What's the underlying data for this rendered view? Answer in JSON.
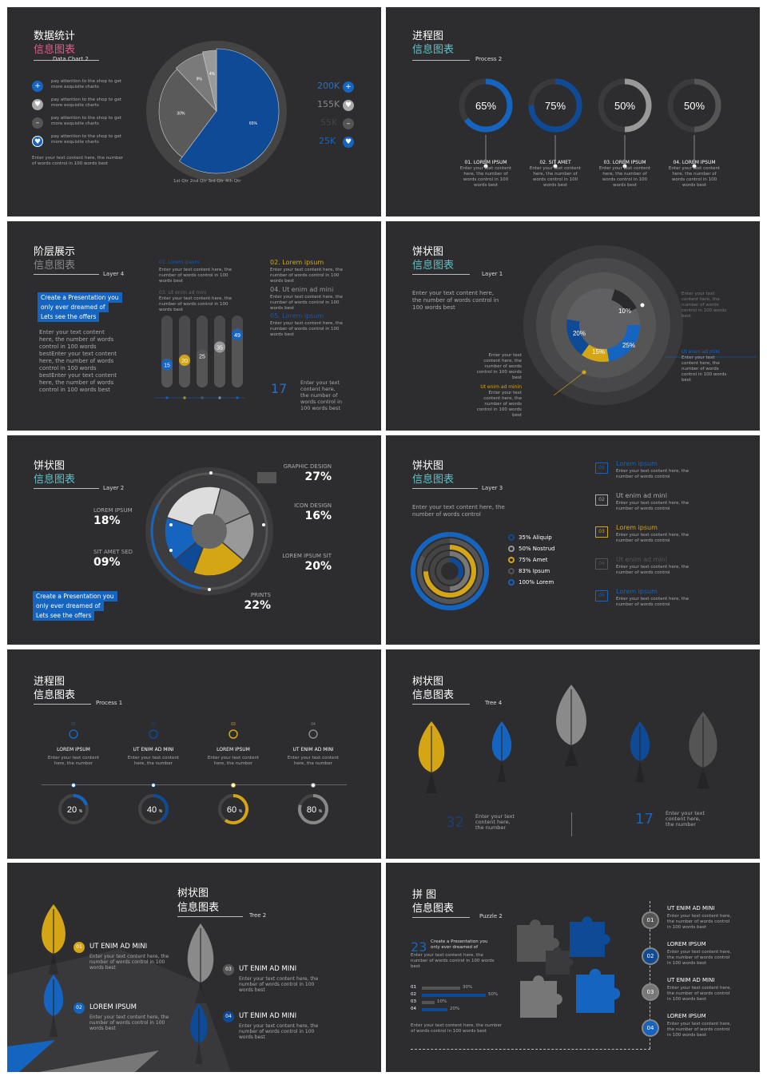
{
  "colors": {
    "bg": "#2d2d2f",
    "blue": "#1565c0",
    "yellow": "#d4a514",
    "grey": "#8a8a8a",
    "dark": "#555"
  },
  "s1": {
    "t1": "数据统计",
    "t2": "信息图表",
    "sub": "Data Chart 2",
    "items": [
      "pay attention to the shop to get more exquisite charts",
      "pay attention to the shop to get more exquisite charts",
      "pay attention to the shop to get more exquisite charts",
      "pay attention to the shop to get more exquisite charts"
    ],
    "foot": "Enter your text content here, the number of words control in 100 words best",
    "nums": [
      "200K",
      "155K",
      "55K",
      "25K"
    ],
    "legend": "1st Qtr  2nd Qtr  3rd Qtr  4th Qtr",
    "chart_data": {
      "type": "pie",
      "values": [
        65,
        30,
        9,
        4
      ],
      "labels": [
        "65%",
        "30%",
        "9%",
        "4%"
      ]
    }
  },
  "s2": {
    "t1": "进程图",
    "t2": "信息图表",
    "sub": "Process 2",
    "rings": [
      {
        "v": "65%",
        "h": "01. LOREM IPSUM"
      },
      {
        "v": "75%",
        "h": "02. SIT AMET"
      },
      {
        "v": "50%",
        "h": "03. LOREM IPSUM"
      },
      {
        "v": "50%",
        "h": "04. LOREM IPSUM"
      }
    ],
    "body": "Enter your text content here, the number of words control in 100 words best"
  },
  "s3": {
    "t1": "阶层展示",
    "t2": "信息图表",
    "sub": "Layer 4",
    "box": [
      "Create a Presentation you",
      "only ever dreamed of",
      "Lets see the offers"
    ],
    "left": "Enter your text content here, the number of words control in 100 words bestEnter your text content here, the number of words control in 100 words bestEnter your text content here, the number of words control in 100 words best",
    "c1h": [
      "01. Lorem ipsum",
      "03. Ut enim ad mini"
    ],
    "c2h": [
      "02. Lorem ipsum",
      "04. Ut enim ad mini",
      "05. Lorem ipsum"
    ],
    "para": "Enter your text content here, the number of words control in 100 words best",
    "bars": [
      "15",
      "20",
      "25",
      "35",
      "49"
    ],
    "big": "17",
    "bigtxt": "Enter your text content here, the number of words control in 100 words best"
  },
  "s4": {
    "t1": "饼状图",
    "t2": "信息图表",
    "sub": "Layer 1",
    "body": "Enter your text content here, the number of words control in 100 words best",
    "labs": [
      "20%",
      "15%",
      "25%",
      "10%"
    ],
    "r1": "Ut enim ad mini",
    "r2": "Ut enim ad mini",
    "l1": "Enter your text content here, the number of words control in 100 words best",
    "l2": "Ut enim ad minin",
    "small": "Enter your text content here, the number of words control in 100 words best"
  },
  "s5": {
    "t1": "饼状图",
    "t2": "信息图表",
    "sub": "Layer 2",
    "labs": [
      {
        "n": "GRAPHIC DESIGN",
        "v": "27%"
      },
      {
        "n": "ICON DESIGN",
        "v": "16%"
      },
      {
        "n": "LOREM IPSUM SIT",
        "v": "20%"
      },
      {
        "n": "PRINTS",
        "v": "22%"
      }
    ],
    "left": [
      {
        "n": "LOREM IPSUM",
        "v": "18%"
      },
      {
        "n": "SIT AMET SED",
        "v": "09%"
      }
    ],
    "box": [
      "Create a Presentation you",
      "only ever dreamed of",
      "Lets see the offers"
    ]
  },
  "s6": {
    "t1": "饼状图",
    "t2": "信息图表",
    "sub": "Layer 3",
    "body": "Enter your text content here, the number of words control",
    "legend": [
      "35% Aliquip",
      "50% Nostrud",
      "75% Amet",
      "83% Ipsum",
      "100% Lorem"
    ],
    "list": [
      {
        "n": "01",
        "h": "Lorem ipsum"
      },
      {
        "n": "02",
        "h": "Ut enim ad mini"
      },
      {
        "n": "03",
        "h": "Lorem ipsum"
      },
      {
        "n": "04",
        "h": "Ut enim ad mini"
      },
      {
        "n": "05",
        "h": "Lorem ipsum"
      }
    ],
    "txt": "Enter your text content here, the number of words control"
  },
  "s7": {
    "t1": "进程图",
    "t2": "信息图表",
    "sub": "Process 1",
    "steps": [
      {
        "n": "01",
        "h": "LOREM IPSUM",
        "v": "20"
      },
      {
        "n": "02",
        "h": "UT ENIM AD MINI",
        "v": "40"
      },
      {
        "n": "03",
        "h": "LOREM IPSUM",
        "v": "60"
      },
      {
        "n": "04",
        "h": "UT ENIM AD MINI",
        "v": "80"
      }
    ],
    "txt": "Enter your text content here, the number",
    "pct": "%"
  },
  "s8": {
    "t1": "树状图",
    "t2": "信息图表",
    "sub": "Tree 4",
    "n1": "32",
    "n2": "17",
    "txt": "Enter your text content here, the number"
  },
  "s9": {
    "t1": "树状图",
    "t2": "信息图表",
    "sub": "Tree 2",
    "items": [
      {
        "n": "01",
        "h": "UT ENIM AD MINI"
      },
      {
        "n": "02",
        "h": "LOREM IPSUM"
      },
      {
        "n": "03",
        "h": "UT ENIM AD MINI"
      },
      {
        "n": "04",
        "h": "UT ENIM AD MINI"
      }
    ],
    "txt": "Enter your text content here, the number of words control in 100 words best"
  },
  "s10": {
    "t1": "拼 图",
    "t2": "信息图表",
    "sub": "Puzzle 2",
    "big": "23",
    "bigtxt": "Create a Presentation you only ever dreamed of",
    "body": "Enter your text content here, the number of words control in 100 words best",
    "bars": [
      {
        "n": "01",
        "v": "30%"
      },
      {
        "n": "02",
        "v": "50%"
      },
      {
        "n": "03",
        "v": "10%"
      },
      {
        "n": "04",
        "v": "20%"
      }
    ],
    "items": [
      {
        "n": "01",
        "h": "UT ENIM AD MINI"
      },
      {
        "n": "02",
        "h": "LOREM IPSUM"
      },
      {
        "n": "03",
        "h": "UT ENIM AD MINI"
      },
      {
        "n": "04",
        "h": "LOREM IPSUM"
      }
    ],
    "txt": "Enter your text content here, the number of words control in 100 words best"
  }
}
